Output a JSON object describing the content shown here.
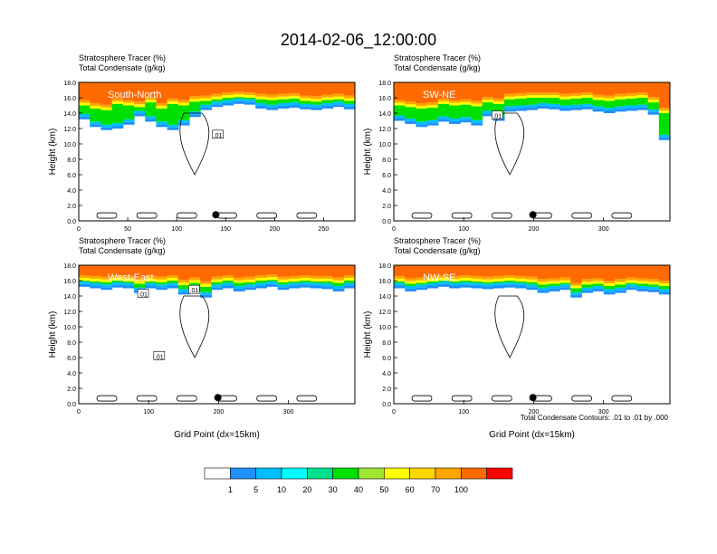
{
  "figure": {
    "main_title": "2014-02-06_12:00:00",
    "contour_note": "Total Condensate Contours: .01 to .01 by .000"
  },
  "chart_data": [
    {
      "type": "heatmap",
      "name": "South-North",
      "inset_label": "South-North",
      "subtitle_lines": [
        "Stratosphere Tracer   (%)",
        "Total Condensate   (g/kg)"
      ],
      "ylabel": "Height (km)",
      "xlabel": "",
      "xlim": [
        0,
        282
      ],
      "ylim": [
        0,
        18
      ],
      "xticks": [
        0,
        50,
        100,
        150,
        200,
        250
      ],
      "yticks": [
        0,
        2,
        4,
        6,
        8,
        10,
        12,
        14,
        16,
        18
      ],
      "contour_labels": [
        {
          "text": ".01",
          "x": 142,
          "y": 11.2
        }
      ],
      "marker": {
        "x": 140,
        "y": 0.8
      },
      "tracer_bottom_km": [
        13.2,
        12.2,
        11.8,
        12.0,
        12.5,
        13.6,
        12.9,
        12.2,
        11.8,
        12.4,
        13.5,
        14.4,
        14.8,
        15.0,
        15.2,
        15.1,
        14.6,
        14.4,
        14.6,
        14.7,
        14.5,
        14.4,
        14.6,
        14.8,
        14.5
      ],
      "green_top_km": [
        15.0,
        14.6,
        14.4,
        15.2,
        15.0,
        14.8,
        15.4,
        14.6,
        15.2,
        15.0,
        15.5,
        15.6,
        15.8,
        16.0,
        16.1,
        16.0,
        15.8,
        15.7,
        15.8,
        15.9,
        15.6,
        15.5,
        15.7,
        15.8,
        15.6
      ]
    },
    {
      "type": "heatmap",
      "name": "SW-NE",
      "inset_label": "SW-NE",
      "subtitle_lines": [
        "Stratosphere Tracer   (%)",
        "Total Condensate   (g/kg)"
      ],
      "ylabel": "Height (km)",
      "xlabel": "",
      "xlim": [
        0,
        395
      ],
      "ylim": [
        0,
        18
      ],
      "xticks": [
        0,
        100,
        200,
        300
      ],
      "yticks": [
        0,
        2,
        4,
        6,
        8,
        10,
        12,
        14,
        16,
        18
      ],
      "contour_labels": [
        {
          "text": ".01",
          "x": 148,
          "y": 13.7
        }
      ],
      "marker": {
        "x": 199,
        "y": 0.8
      },
      "tracer_bottom_km": [
        13.0,
        12.6,
        12.2,
        12.4,
        12.9,
        12.6,
        12.8,
        12.4,
        13.6,
        13.0,
        14.2,
        14.3,
        14.4,
        14.6,
        14.5,
        14.3,
        14.4,
        14.5,
        14.2,
        14.0,
        14.2,
        14.3,
        14.4,
        13.8,
        10.5
      ],
      "green_top_km": [
        15.0,
        14.8,
        14.6,
        14.7,
        15.2,
        15.0,
        15.1,
        14.9,
        15.4,
        15.2,
        15.8,
        15.9,
        16.0,
        16.0,
        16.0,
        15.8,
        15.9,
        16.0,
        15.7,
        15.6,
        15.8,
        15.9,
        16.0,
        15.4,
        14.0
      ]
    },
    {
      "type": "heatmap",
      "name": "West-East",
      "inset_label": "West-East",
      "subtitle_lines": [
        "Stratosphere Tracer   (%)",
        "Total Condensate   (g/kg)"
      ],
      "ylabel": "Height (km)",
      "xlabel": "Grid Point (dx=15km)",
      "xlim": [
        0,
        395
      ],
      "ylim": [
        0,
        18
      ],
      "xticks": [
        0,
        100,
        200,
        300
      ],
      "yticks": [
        0,
        2,
        4,
        6,
        8,
        10,
        12,
        14,
        16,
        18
      ],
      "contour_labels": [
        {
          "text": ".01",
          "x": 92,
          "y": 14.3
        },
        {
          "text": ".01",
          "x": 165,
          "y": 14.8
        },
        {
          "text": ".01",
          "x": 115,
          "y": 6.2
        }
      ],
      "marker": {
        "x": 199,
        "y": 0.8
      },
      "tracer_bottom_km": [
        15.2,
        15.0,
        14.8,
        15.1,
        15.0,
        14.4,
        15.0,
        14.8,
        15.0,
        14.2,
        14.6,
        13.8,
        14.8,
        15.0,
        14.6,
        14.8,
        15.0,
        15.2,
        14.8,
        15.0,
        15.1,
        15.0,
        14.9,
        14.6,
        15.0
      ],
      "green_top_km": [
        16.0,
        15.9,
        15.8,
        16.0,
        15.9,
        15.6,
        15.9,
        15.8,
        16.0,
        15.4,
        15.7,
        15.2,
        15.8,
        16.0,
        15.7,
        15.8,
        16.0,
        16.1,
        15.8,
        15.9,
        16.0,
        15.9,
        15.9,
        15.7,
        16.0
      ]
    },
    {
      "type": "heatmap",
      "name": "NW-SE",
      "inset_label": "NW-SE",
      "subtitle_lines": [
        "Stratosphere Tracer   (%)",
        "Total Condensate   (g/kg)"
      ],
      "ylabel": "Height (km)",
      "xlabel": "Grid Point (dx=15km)",
      "xlim": [
        0,
        395
      ],
      "ylim": [
        0,
        18
      ],
      "xticks": [
        0,
        100,
        200,
        300
      ],
      "yticks": [
        0,
        2,
        4,
        6,
        8,
        10,
        12,
        14,
        16,
        18
      ],
      "contour_labels": [],
      "marker": {
        "x": 199,
        "y": 0.8
      },
      "tracer_bottom_km": [
        15.0,
        14.6,
        14.8,
        15.0,
        15.2,
        15.0,
        15.1,
        15.0,
        14.9,
        15.0,
        15.1,
        15.0,
        14.8,
        14.4,
        14.6,
        14.8,
        13.8,
        14.4,
        14.6,
        14.2,
        14.4,
        14.8,
        14.6,
        14.5,
        14.2
      ],
      "green_top_km": [
        15.9,
        15.6,
        15.7,
        15.9,
        16.0,
        15.9,
        16.0,
        15.9,
        15.8,
        15.9,
        16.0,
        15.9,
        15.8,
        15.5,
        15.6,
        15.7,
        15.0,
        15.5,
        15.6,
        15.3,
        15.5,
        15.7,
        15.6,
        15.5,
        15.3
      ]
    }
  ],
  "colorbar": {
    "colors": [
      "#ffffff",
      "#1e90ff",
      "#00bfff",
      "#00ffff",
      "#00e08c",
      "#00e000",
      "#a0e632",
      "#ffff00",
      "#ffd700",
      "#ffa500",
      "#ff6a00",
      "#ff0000"
    ],
    "labels": [
      "1",
      "5",
      "10",
      "20",
      "30",
      "40",
      "50",
      "60",
      "70",
      "100"
    ]
  }
}
